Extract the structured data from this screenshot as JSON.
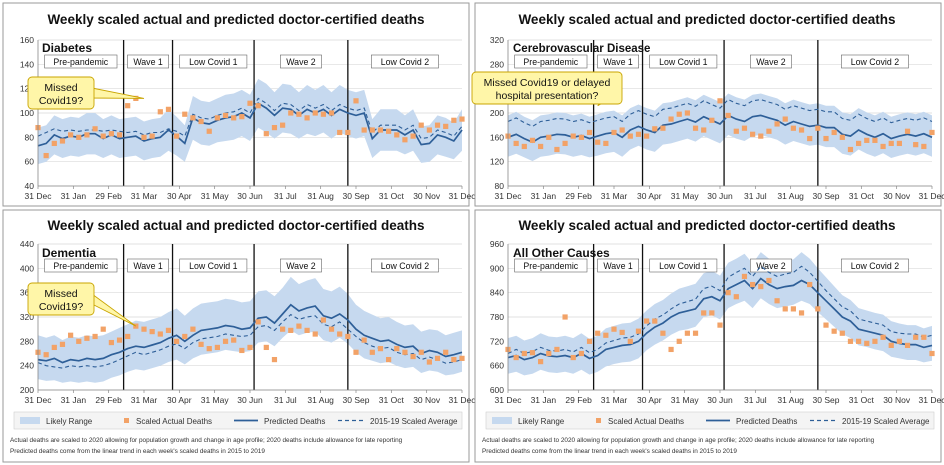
{
  "colors": {
    "band": "#c6d9ef",
    "actual": "#f2a267",
    "predicted": "#2e5f98",
    "average": "#2e5f98",
    "axis": "#888888",
    "grid": "#d9d9d9",
    "callout_fill": "#fff6a8",
    "callout_stroke": "#c8a400"
  },
  "x_tick_labels": [
    "31 Dec",
    "31 Jan",
    "29 Feb",
    "31 Mar",
    "30 Apr",
    "31 May",
    "30 Jun",
    "31 Jul",
    "31 Aug",
    "30 Sep",
    "31 Oct",
    "30 Nov",
    "31 Dec"
  ],
  "legend": {
    "likely_range": "Likely Range",
    "scaled_actual": "Scaled Actual Deaths",
    "predicted": "Predicted Deaths",
    "average": "2015-19 Scaled Average"
  },
  "footnote": {
    "line1": "Actual deaths are scaled to 2020 allowing for population growth and change in age profile; 2020 deaths include allowance for late reporting",
    "line2": "Predicted deaths come from the linear trend in each week's scaled deaths in 2015 to 2019"
  },
  "chart_data": [
    {
      "type": "line",
      "title": "Weekly scaled actual and predicted doctor-certified deaths",
      "subtitle": "Diabetes",
      "ylim": [
        40,
        160
      ],
      "yticks": [
        40,
        60,
        80,
        100,
        120,
        140,
        160
      ],
      "weeks": 53,
      "periods": [
        {
          "label": "Pre-pandemic",
          "start": 0,
          "end": 10.5
        },
        {
          "label": "Wave 1",
          "start": 10.5,
          "end": 16.5
        },
        {
          "label": "Low Covid 1",
          "start": 16.5,
          "end": 26.5
        },
        {
          "label": "Wave 2",
          "start": 26.5,
          "end": 38
        },
        {
          "label": "Low Covid 2",
          "start": 38,
          "end": 52
        }
      ],
      "callout": {
        "text": "Missed Covid19?",
        "anchor_week": 13,
        "anchor_value": 112
      },
      "predicted": [
        73,
        75,
        82,
        79,
        81,
        80,
        83,
        83,
        79,
        82,
        79,
        80,
        81,
        77,
        79,
        80,
        86,
        81,
        75,
        96,
        92,
        91,
        94,
        96,
        97,
        100,
        96,
        108,
        104,
        98,
        104,
        103,
        98,
        103,
        100,
        103,
        98,
        103,
        100,
        98,
        100,
        79,
        86,
        86,
        86,
        82,
        86,
        74,
        75,
        82,
        80,
        77,
        86
      ],
      "average": [
        81,
        84,
        87,
        85,
        86,
        85,
        86,
        86,
        85,
        86,
        85,
        84,
        85,
        82,
        84,
        84,
        87,
        85,
        81,
        99,
        96,
        95,
        98,
        100,
        101,
        104,
        100,
        112,
        108,
        102,
        108,
        107,
        102,
        107,
        104,
        107,
        102,
        107,
        104,
        102,
        104,
        84,
        90,
        90,
        90,
        86,
        90,
        79,
        80,
        86,
        84,
        81,
        89
      ],
      "band_low": [
        58,
        60,
        66,
        63,
        65,
        64,
        66,
        66,
        63,
        66,
        63,
        64,
        65,
        61,
        63,
        64,
        69,
        65,
        60,
        78,
        74,
        73,
        76,
        77,
        78,
        81,
        77,
        88,
        84,
        79,
        84,
        83,
        79,
        83,
        81,
        84,
        79,
        84,
        81,
        79,
        81,
        63,
        69,
        69,
        69,
        66,
        69,
        59,
        60,
        66,
        64,
        62,
        69
      ],
      "band_high": [
        88,
        90,
        98,
        95,
        97,
        96,
        100,
        100,
        95,
        98,
        95,
        96,
        97,
        93,
        95,
        96,
        103,
        97,
        90,
        114,
        110,
        109,
        112,
        115,
        116,
        119,
        115,
        128,
        124,
        117,
        124,
        123,
        117,
        123,
        119,
        123,
        117,
        123,
        119,
        117,
        119,
        95,
        103,
        103,
        103,
        98,
        103,
        89,
        90,
        98,
        96,
        92,
        103
      ],
      "actual": [
        88,
        65,
        75,
        77,
        82,
        80,
        82,
        87,
        81,
        83,
        82,
        106,
        112,
        80,
        81,
        101,
        103,
        81,
        99,
        96,
        93,
        85,
        96,
        98,
        96,
        97,
        108,
        106,
        83,
        88,
        90,
        100,
        99,
        96,
        100,
        99,
        100,
        84,
        84,
        110,
        86,
        86,
        86,
        85,
        82,
        78,
        81,
        90,
        86,
        90,
        89,
        94,
        95
      ]
    },
    {
      "type": "line",
      "title": "Weekly scaled actual and predicted doctor-certified deaths",
      "subtitle": "Cerebrovascular Disease",
      "ylim": [
        80,
        320
      ],
      "yticks": [
        80,
        120,
        160,
        200,
        240,
        280,
        320
      ],
      "weeks": 53,
      "periods": [
        {
          "label": "Pre-pandemic",
          "start": 0,
          "end": 10.5
        },
        {
          "label": "Wave 1",
          "start": 10.5,
          "end": 16.5
        },
        {
          "label": "Low Covid 1",
          "start": 16.5,
          "end": 26.5
        },
        {
          "label": "Wave 2",
          "start": 26.5,
          "end": 38
        },
        {
          "label": "Low Covid 2",
          "start": 38,
          "end": 52
        }
      ],
      "callout": {
        "text": "Missed Covid19 or delayed hospital presentation?",
        "anchor_week": 11,
        "anchor_value": 212
      },
      "predicted": [
        160,
        165,
        158,
        152,
        160,
        162,
        165,
        164,
        160,
        163,
        158,
        162,
        166,
        168,
        160,
        172,
        178,
        172,
        168,
        180,
        182,
        186,
        190,
        185,
        194,
        188,
        182,
        196,
        190,
        186,
        194,
        196,
        192,
        188,
        180,
        186,
        182,
        178,
        180,
        176,
        176,
        165,
        162,
        172,
        165,
        160,
        166,
        158,
        162,
        165,
        162,
        166,
        160
      ],
      "average": [
        186,
        192,
        184,
        178,
        186,
        188,
        191,
        190,
        186,
        189,
        184,
        188,
        192,
        194,
        186,
        198,
        204,
        198,
        194,
        206,
        208,
        212,
        216,
        211,
        220,
        214,
        208,
        222,
        216,
        212,
        220,
        222,
        218,
        214,
        206,
        212,
        208,
        204,
        206,
        202,
        202,
        191,
        188,
        198,
        191,
        186,
        192,
        184,
        188,
        191,
        188,
        192,
        186
      ],
      "band_low": [
        128,
        133,
        127,
        121,
        128,
        130,
        133,
        132,
        128,
        131,
        127,
        130,
        134,
        136,
        128,
        140,
        146,
        140,
        136,
        148,
        150,
        154,
        158,
        153,
        162,
        156,
        150,
        164,
        158,
        154,
        162,
        164,
        160,
        156,
        148,
        154,
        150,
        146,
        148,
        144,
        144,
        133,
        130,
        140,
        133,
        128,
        134,
        126,
        130,
        133,
        130,
        134,
        128
      ],
      "band_high": [
        196,
        202,
        194,
        188,
        196,
        198,
        201,
        200,
        196,
        199,
        194,
        198,
        202,
        204,
        196,
        208,
        214,
        208,
        204,
        216,
        218,
        222,
        226,
        221,
        230,
        224,
        218,
        232,
        226,
        222,
        230,
        232,
        228,
        224,
        216,
        222,
        218,
        214,
        216,
        212,
        212,
        201,
        198,
        208,
        201,
        196,
        202,
        194,
        198,
        201,
        198,
        202,
        196
      ],
      "actual": [
        162,
        150,
        145,
        155,
        145,
        160,
        140,
        150,
        162,
        160,
        168,
        152,
        150,
        168,
        172,
        162,
        165,
        162,
        174,
        175,
        190,
        198,
        200,
        175,
        172,
        188,
        220,
        196,
        170,
        175,
        165,
        162,
        170,
        182,
        190,
        175,
        172,
        158,
        175,
        158,
        168,
        160,
        140,
        150,
        155,
        155,
        145,
        150,
        150,
        170,
        148,
        145,
        168
      ]
    },
    {
      "type": "line",
      "title": "Weekly scaled actual and predicted doctor-certified deaths",
      "subtitle": "Dementia",
      "ylim": [
        200,
        440
      ],
      "yticks": [
        200,
        240,
        280,
        320,
        360,
        400,
        440
      ],
      "weeks": 53,
      "periods": [
        {
          "label": "Pre-pandemic",
          "start": 0,
          "end": 10.5
        },
        {
          "label": "Wave 1",
          "start": 10.5,
          "end": 16.5
        },
        {
          "label": "Low Covid 1",
          "start": 16.5,
          "end": 26.5
        },
        {
          "label": "Wave 2",
          "start": 26.5,
          "end": 38
        },
        {
          "label": "Low Covid 2",
          "start": 38,
          "end": 52
        }
      ],
      "callout": {
        "text": "Missed Covid19?",
        "anchor_week": 12,
        "anchor_value": 305
      },
      "predicted": [
        250,
        248,
        252,
        245,
        250,
        248,
        252,
        250,
        252,
        258,
        262,
        268,
        272,
        270,
        274,
        278,
        285,
        290,
        280,
        290,
        298,
        300,
        302,
        306,
        304,
        300,
        302,
        318,
        320,
        310,
        325,
        340,
        330,
        335,
        338,
        322,
        318,
        325,
        315,
        300,
        290,
        285,
        280,
        282,
        275,
        270,
        272,
        260,
        265,
        262,
        255,
        258,
        262
      ],
      "average": [
        245,
        240,
        238,
        236,
        240,
        238,
        240,
        238,
        240,
        244,
        250,
        256,
        262,
        258,
        262,
        266,
        272,
        276,
        268,
        278,
        284,
        286,
        288,
        292,
        290,
        288,
        290,
        304,
        306,
        298,
        312,
        324,
        316,
        320,
        322,
        308,
        304,
        312,
        300,
        288,
        278,
        272,
        268,
        270,
        262,
        258,
        260,
        250,
        254,
        250,
        244,
        246,
        250
      ],
      "band_low": [
        218,
        215,
        216,
        212,
        214,
        212,
        214,
        212,
        214,
        220,
        224,
        230,
        234,
        232,
        236,
        240,
        246,
        250,
        242,
        252,
        258,
        260,
        262,
        266,
        264,
        262,
        264,
        278,
        280,
        272,
        286,
        298,
        290,
        294,
        296,
        282,
        278,
        286,
        276,
        262,
        252,
        248,
        244,
        246,
        240,
        236,
        238,
        228,
        232,
        230,
        224,
        226,
        230
      ],
      "band_high": [
        290,
        286,
        290,
        282,
        288,
        286,
        290,
        288,
        290,
        296,
        302,
        308,
        314,
        312,
        316,
        320,
        328,
        334,
        322,
        334,
        342,
        344,
        346,
        350,
        348,
        344,
        346,
        362,
        364,
        354,
        368,
        386,
        374,
        380,
        384,
        366,
        362,
        370,
        358,
        340,
        330,
        324,
        318,
        320,
        312,
        306,
        308,
        296,
        300,
        298,
        290,
        294,
        298
      ],
      "actual": [
        262,
        258,
        270,
        275,
        290,
        280,
        285,
        288,
        300,
        278,
        282,
        288,
        305,
        300,
        296,
        292,
        298,
        280,
        288,
        300,
        275,
        268,
        270,
        280,
        282,
        265,
        270,
        312,
        270,
        250,
        300,
        298,
        305,
        298,
        292,
        315,
        300,
        292,
        288,
        262,
        282,
        262,
        268,
        250,
        268,
        262,
        255,
        262,
        246,
        252,
        262,
        250,
        252
      ]
    },
    {
      "type": "line",
      "title": "Weekly scaled actual and predicted doctor-certified deaths",
      "subtitle": "All Other Causes",
      "ylim": [
        600,
        960
      ],
      "yticks": [
        600,
        660,
        720,
        780,
        840,
        900,
        960
      ],
      "weeks": 53,
      "periods": [
        {
          "label": "Pre-pandemic",
          "start": 0,
          "end": 10.5
        },
        {
          "label": "Wave 1",
          "start": 10.5,
          "end": 16.5
        },
        {
          "label": "Low Covid 1",
          "start": 16.5,
          "end": 26.5
        },
        {
          "label": "Wave 2",
          "start": 26.5,
          "end": 38
        },
        {
          "label": "Low Covid 2",
          "start": 38,
          "end": 52
        }
      ],
      "callout": null,
      "predicted": [
        680,
        685,
        675,
        680,
        690,
        684,
        682,
        685,
        680,
        690,
        678,
        685,
        700,
        705,
        710,
        712,
        720,
        740,
        755,
        765,
        780,
        790,
        795,
        800,
        825,
        830,
        820,
        850,
        860,
        870,
        850,
        875,
        860,
        850,
        855,
        858,
        870,
        860,
        840,
        820,
        800,
        780,
        770,
        750,
        745,
        740,
        735,
        720,
        715,
        712,
        712,
        705,
        710
      ],
      "average": [
        690,
        700,
        690,
        695,
        705,
        698,
        696,
        700,
        694,
        705,
        692,
        700,
        716,
        722,
        728,
        730,
        738,
        758,
        775,
        785,
        800,
        812,
        818,
        824,
        850,
        856,
        845,
        878,
        890,
        900,
        880,
        905,
        890,
        880,
        886,
        890,
        905,
        890,
        868,
        845,
        825,
        805,
        795,
        775,
        770,
        765,
        760,
        744,
        740,
        738,
        738,
        730,
        735
      ],
      "band_low": [
        640,
        645,
        636,
        640,
        650,
        644,
        642,
        645,
        640,
        650,
        638,
        645,
        658,
        664,
        668,
        670,
        678,
        698,
        712,
        722,
        736,
        746,
        750,
        756,
        780,
        784,
        774,
        802,
        812,
        820,
        802,
        826,
        812,
        802,
        806,
        810,
        820,
        812,
        792,
        774,
        756,
        738,
        728,
        710,
        706,
        700,
        696,
        682,
        678,
        674,
        674,
        668,
        672
      ],
      "band_high": [
        728,
        734,
        722,
        728,
        740,
        732,
        730,
        734,
        728,
        740,
        726,
        734,
        752,
        758,
        764,
        766,
        776,
        796,
        812,
        822,
        838,
        850,
        856,
        862,
        888,
        894,
        882,
        914,
        924,
        936,
        912,
        940,
        924,
        912,
        918,
        922,
        940,
        924,
        900,
        878,
        856,
        834,
        822,
        802,
        796,
        790,
        786,
        770,
        764,
        760,
        760,
        752,
        758
      ],
      "actual": [
        700,
        680,
        690,
        692,
        670,
        690,
        700,
        780,
        680,
        690,
        720,
        740,
        735,
        750,
        742,
        720,
        745,
        770,
        770,
        740,
        700,
        720,
        740,
        740,
        790,
        790,
        760,
        840,
        830,
        880,
        860,
        855,
        870,
        820,
        800,
        800,
        790,
        860,
        800,
        760,
        745,
        740,
        720,
        720,
        715,
        720,
        730,
        710,
        720,
        710,
        730,
        730,
        690
      ]
    }
  ]
}
